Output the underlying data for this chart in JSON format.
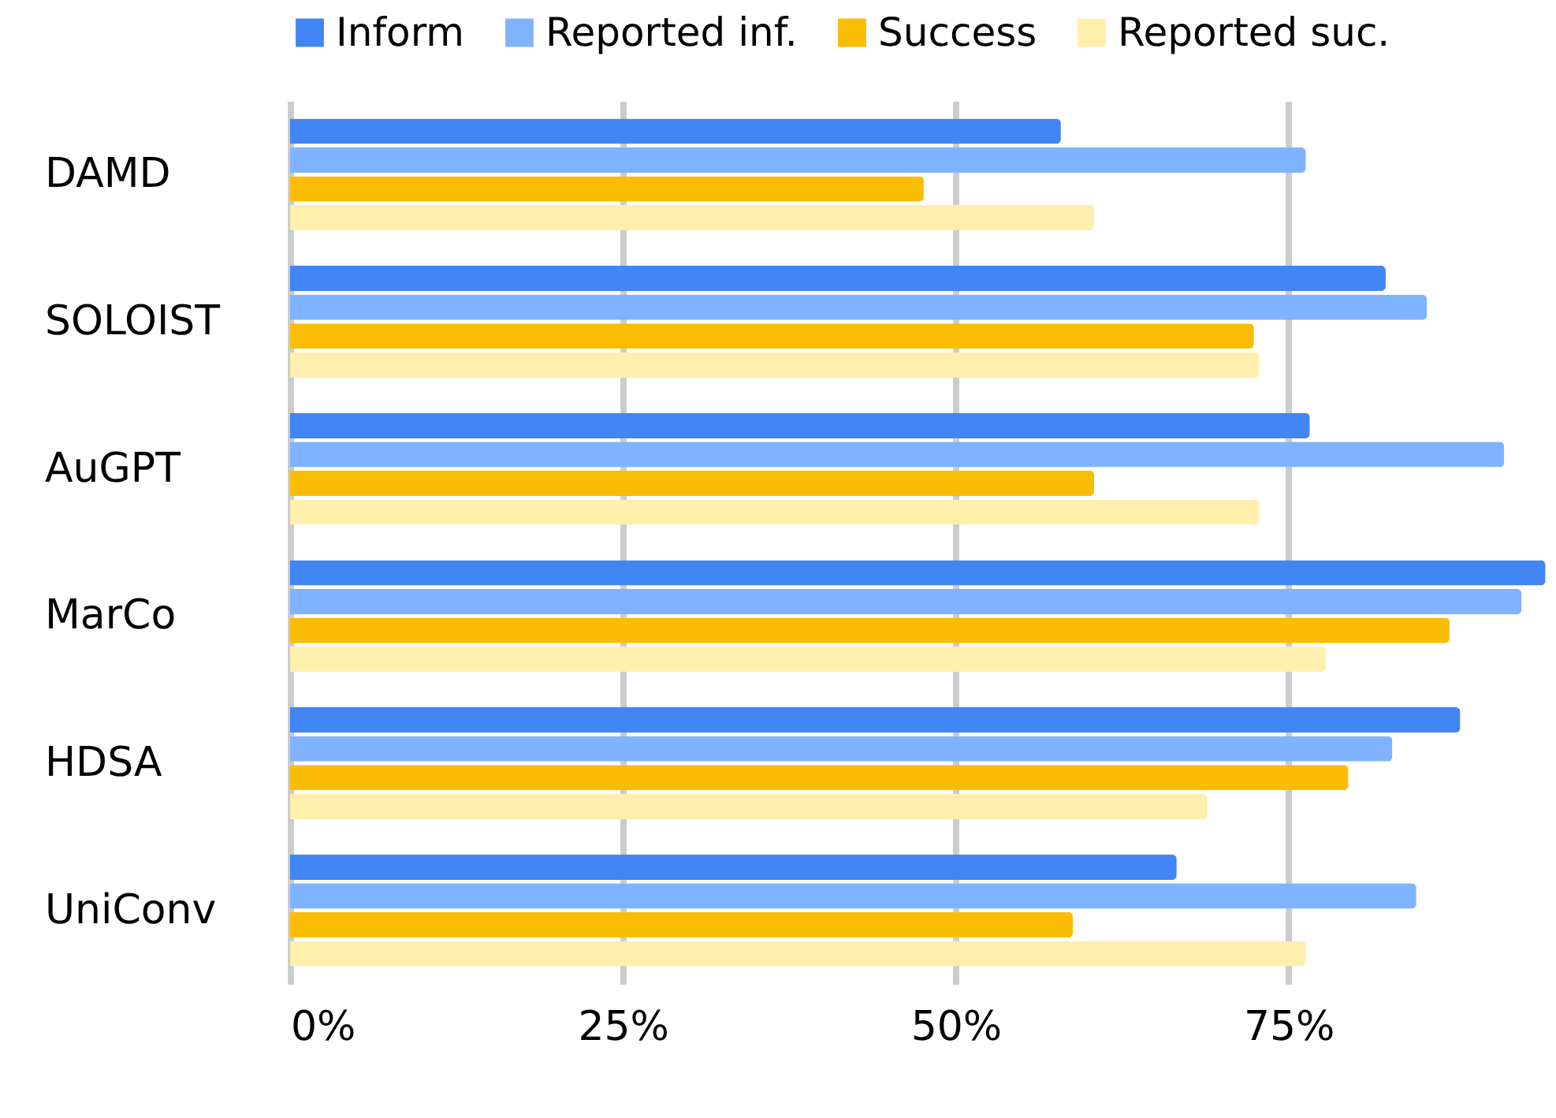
{
  "chart_data": {
    "type": "bar",
    "orientation": "horizontal",
    "categories": [
      "DAMD",
      "SOLOIST",
      "AuGPT",
      "MarCo",
      "HDSA",
      "UniConv"
    ],
    "series": [
      {
        "name": "Inform",
        "color": "#4285f4",
        "values": [
          57.9,
          82.3,
          76.6,
          94.3,
          87.9,
          66.6
        ]
      },
      {
        "name": "Reported inf.",
        "color": "#80b3ff",
        "values": [
          76.3,
          85.4,
          91.2,
          92.5,
          82.8,
          84.6
        ]
      },
      {
        "name": "Success",
        "color": "#fbbc04",
        "values": [
          47.6,
          72.4,
          60.4,
          87.1,
          79.5,
          58.8
        ]
      },
      {
        "name": "Reported suc.",
        "color": "#feefad",
        "values": [
          60.4,
          72.8,
          72.8,
          77.8,
          68.9,
          76.3
        ]
      }
    ],
    "xlim": [
      0,
      94.5
    ],
    "xticks": [
      {
        "value": 0,
        "label": "0%"
      },
      {
        "value": 25,
        "label": "25%"
      },
      {
        "value": 50,
        "label": "50%"
      },
      {
        "value": 75,
        "label": "75%"
      }
    ],
    "grid": "x",
    "legend": "top"
  }
}
